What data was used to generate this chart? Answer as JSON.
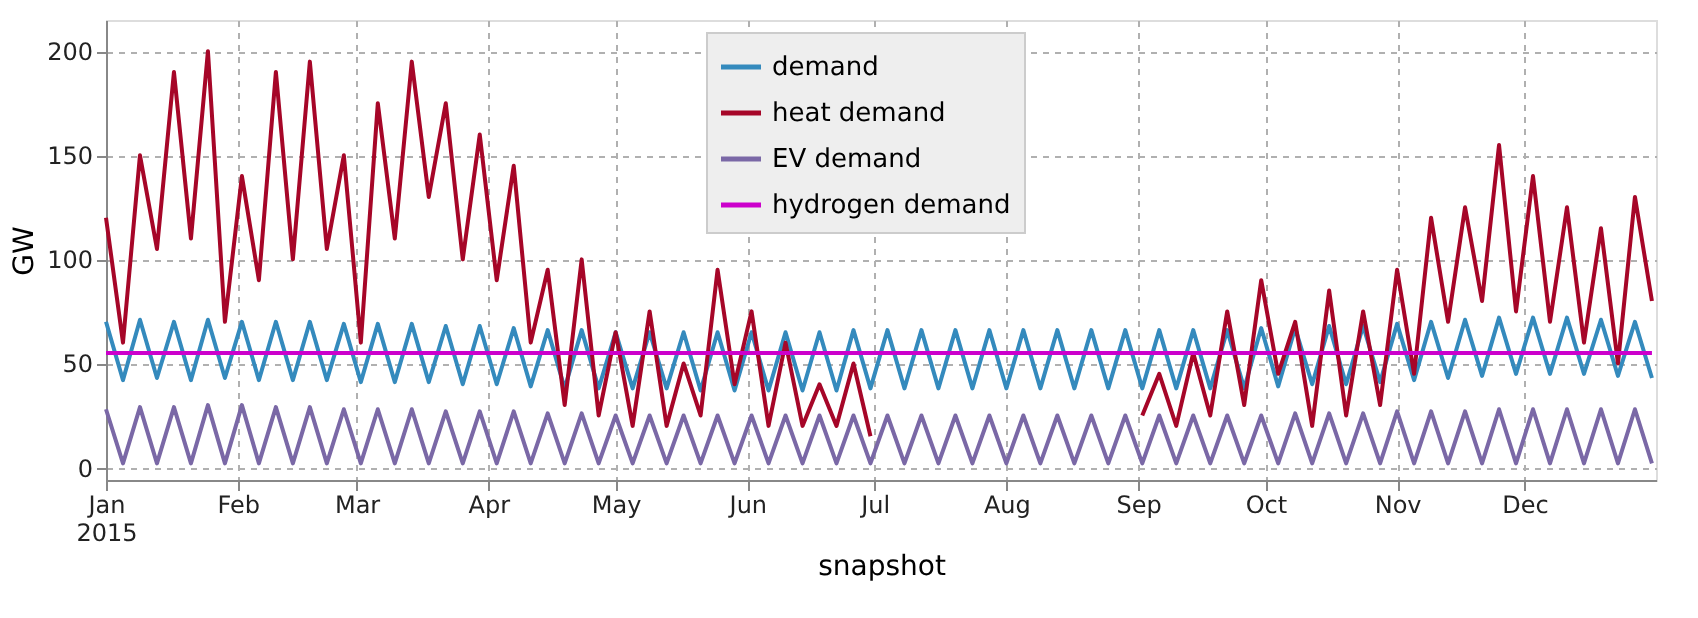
{
  "chart_data": {
    "type": "line",
    "xlabel": "snapshot",
    "ylabel": "GW",
    "x": [
      "2015-01-01",
      "2015-01-05",
      "2015-01-09",
      "2015-01-13",
      "2015-01-17",
      "2015-01-21",
      "2015-01-25",
      "2015-01-29",
      "2015-02-02",
      "2015-02-06",
      "2015-02-10",
      "2015-02-14",
      "2015-02-18",
      "2015-02-22",
      "2015-02-26",
      "2015-03-02",
      "2015-03-06",
      "2015-03-10",
      "2015-03-14",
      "2015-03-18",
      "2015-03-22",
      "2015-03-26",
      "2015-03-30",
      "2015-04-03",
      "2015-04-07",
      "2015-04-11",
      "2015-04-15",
      "2015-04-19",
      "2015-04-23",
      "2015-04-27",
      "2015-05-01",
      "2015-05-05",
      "2015-05-09",
      "2015-05-13",
      "2015-05-17",
      "2015-05-21",
      "2015-05-25",
      "2015-05-29",
      "2015-06-02",
      "2015-06-06",
      "2015-06-10",
      "2015-06-14",
      "2015-06-18",
      "2015-06-22",
      "2015-06-26",
      "2015-06-30",
      "2015-07-04",
      "2015-07-08",
      "2015-07-12",
      "2015-07-16",
      "2015-07-20",
      "2015-07-24",
      "2015-07-28",
      "2015-08-01",
      "2015-08-05",
      "2015-08-09",
      "2015-08-13",
      "2015-08-17",
      "2015-08-21",
      "2015-08-25",
      "2015-08-29",
      "2015-09-02",
      "2015-09-06",
      "2015-09-10",
      "2015-09-14",
      "2015-09-18",
      "2015-09-22",
      "2015-09-26",
      "2015-09-30",
      "2015-10-04",
      "2015-10-08",
      "2015-10-12",
      "2015-10-16",
      "2015-10-20",
      "2015-10-24",
      "2015-10-28",
      "2015-11-01",
      "2015-11-05",
      "2015-11-09",
      "2015-11-13",
      "2015-11-17",
      "2015-11-21",
      "2015-11-25",
      "2015-11-29",
      "2015-12-03",
      "2015-12-07",
      "2015-12-11",
      "2015-12-15",
      "2015-12-19",
      "2015-12-23",
      "2015-12-27",
      "2015-12-31"
    ],
    "series": [
      {
        "name": "demand",
        "color": "#348abd",
        "values": [
          70,
          42,
          71,
          43,
          70,
          42,
          71,
          43,
          70,
          42,
          70,
          42,
          70,
          42,
          69,
          41,
          69,
          41,
          69,
          41,
          68,
          40,
          68,
          40,
          67,
          39,
          66,
          38,
          66,
          38,
          65,
          38,
          65,
          38,
          65,
          37,
          65,
          37,
          65,
          37,
          65,
          37,
          65,
          37,
          66,
          38,
          66,
          38,
          66,
          38,
          66,
          38,
          66,
          38,
          66,
          38,
          66,
          38,
          66,
          38,
          66,
          38,
          66,
          38,
          66,
          38,
          66,
          38,
          67,
          39,
          67,
          40,
          68,
          40,
          68,
          41,
          69,
          42,
          70,
          43,
          71,
          44,
          72,
          45,
          72,
          45,
          72,
          45,
          71,
          44,
          70,
          43
        ]
      },
      {
        "name": "heat demand",
        "color": "#a60628",
        "values": [
          120,
          60,
          150,
          105,
          190,
          110,
          200,
          70,
          140,
          90,
          190,
          100,
          195,
          105,
          150,
          60,
          175,
          110,
          195,
          130,
          175,
          100,
          160,
          90,
          145,
          60,
          95,
          30,
          100,
          25,
          65,
          20,
          75,
          20,
          50,
          25,
          95,
          40,
          75,
          20,
          60,
          20,
          40,
          20,
          50,
          15,
          null,
          null,
          null,
          null,
          null,
          null,
          null,
          null,
          null,
          null,
          null,
          null,
          null,
          null,
          null,
          25,
          45,
          20,
          55,
          25,
          75,
          30,
          90,
          45,
          70,
          20,
          85,
          25,
          75,
          30,
          95,
          45,
          120,
          70,
          125,
          80,
          155,
          75,
          140,
          70,
          125,
          60,
          115,
          50,
          130,
          80
        ]
      },
      {
        "name": "EV demand",
        "color": "#7a68a6",
        "values": [
          28,
          2,
          29,
          2,
          29,
          2,
          30,
          2,
          30,
          2,
          29,
          2,
          29,
          2,
          28,
          2,
          28,
          2,
          28,
          2,
          27,
          2,
          27,
          2,
          27,
          2,
          26,
          2,
          26,
          2,
          25,
          2,
          25,
          2,
          25,
          2,
          25,
          2,
          25,
          2,
          25,
          2,
          25,
          2,
          25,
          2,
          25,
          2,
          25,
          2,
          25,
          2,
          25,
          2,
          25,
          2,
          25,
          2,
          25,
          2,
          25,
          2,
          25,
          2,
          25,
          2,
          25,
          2,
          25,
          2,
          26,
          2,
          26,
          2,
          26,
          2,
          27,
          2,
          27,
          2,
          27,
          2,
          28,
          2,
          28,
          2,
          28,
          2,
          28,
          2,
          28,
          2
        ]
      },
      {
        "name": "hydrogen demand",
        "color": "#cc00cc",
        "x": [
          "2015-01-01",
          "2015-12-31"
        ],
        "values": [
          55,
          55
        ]
      }
    ],
    "xlim": [
      "2015-01-01",
      "2015-12-31T23:00"
    ],
    "xticks": [
      {
        "value": "2015-01-01",
        "label": "Jan\n2015"
      },
      {
        "value": "2015-02-01",
        "label": "Feb"
      },
      {
        "value": "2015-03-01",
        "label": "Mar"
      },
      {
        "value": "2015-04-01",
        "label": "Apr"
      },
      {
        "value": "2015-05-01",
        "label": "May"
      },
      {
        "value": "2015-06-01",
        "label": "Jun"
      },
      {
        "value": "2015-07-01",
        "label": "Jul"
      },
      {
        "value": "2015-08-01",
        "label": "Aug"
      },
      {
        "value": "2015-09-01",
        "label": "Sep"
      },
      {
        "value": "2015-10-01",
        "label": "Oct"
      },
      {
        "value": "2015-11-01",
        "label": "Nov"
      },
      {
        "value": "2015-12-01",
        "label": "Dec"
      }
    ],
    "ylim": [
      -6,
      215
    ],
    "yticks": [
      0,
      50,
      100,
      150,
      200
    ],
    "grid": true,
    "legend": "top",
    "line_style": "solid",
    "marker": "none"
  }
}
